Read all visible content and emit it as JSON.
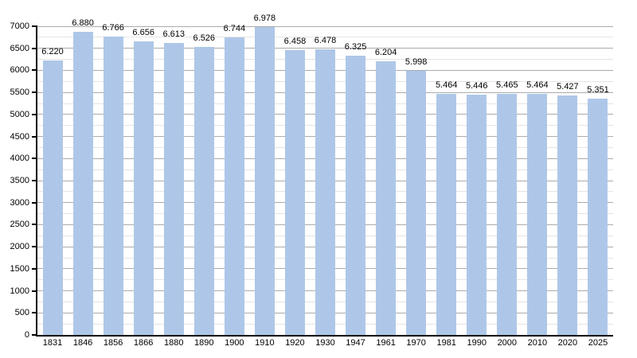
{
  "chart_data": {
    "type": "bar",
    "title": "",
    "xlabel": "",
    "ylabel": "",
    "categories": [
      "1831",
      "1846",
      "1856",
      "1866",
      "1880",
      "1890",
      "1900",
      "1910",
      "1920",
      "1930",
      "1947",
      "1961",
      "1970",
      "1981",
      "1990",
      "2000",
      "2010",
      "2020",
      "2025"
    ],
    "values": [
      6220,
      6880,
      6766,
      6656,
      6613,
      6526,
      6744,
      6978,
      6458,
      6478,
      6325,
      6204,
      5998,
      5464,
      5446,
      5465,
      5464,
      5427,
      5351
    ],
    "value_labels": [
      "6.220",
      "6.880",
      "6.766",
      "6.656",
      "6.613",
      "6.526",
      "6.744",
      "6.978",
      "6.458",
      "6.478",
      "6.325",
      "6.204",
      "5.998",
      "5.464",
      "5.446",
      "5.465",
      "5.464",
      "5.427",
      "5.351"
    ],
    "y_axis": {
      "min": 0,
      "max": 7000,
      "major_step": 500,
      "minor_step": 250,
      "tick_labels": [
        "0",
        "500",
        "1000",
        "1500",
        "2000",
        "2500",
        "3000",
        "3500",
        "4000",
        "4500",
        "5000",
        "5500",
        "6000",
        "6500",
        "7000"
      ]
    },
    "legend": null,
    "grid": "major-and-minor-horizontal",
    "colors": {
      "bar_fill": "#aec7e8",
      "major_gridline": "#ababab",
      "minor_gridline": "#e4e4e4",
      "axis": "#000000",
      "text": "#000000",
      "background": "#ffffff"
    }
  }
}
